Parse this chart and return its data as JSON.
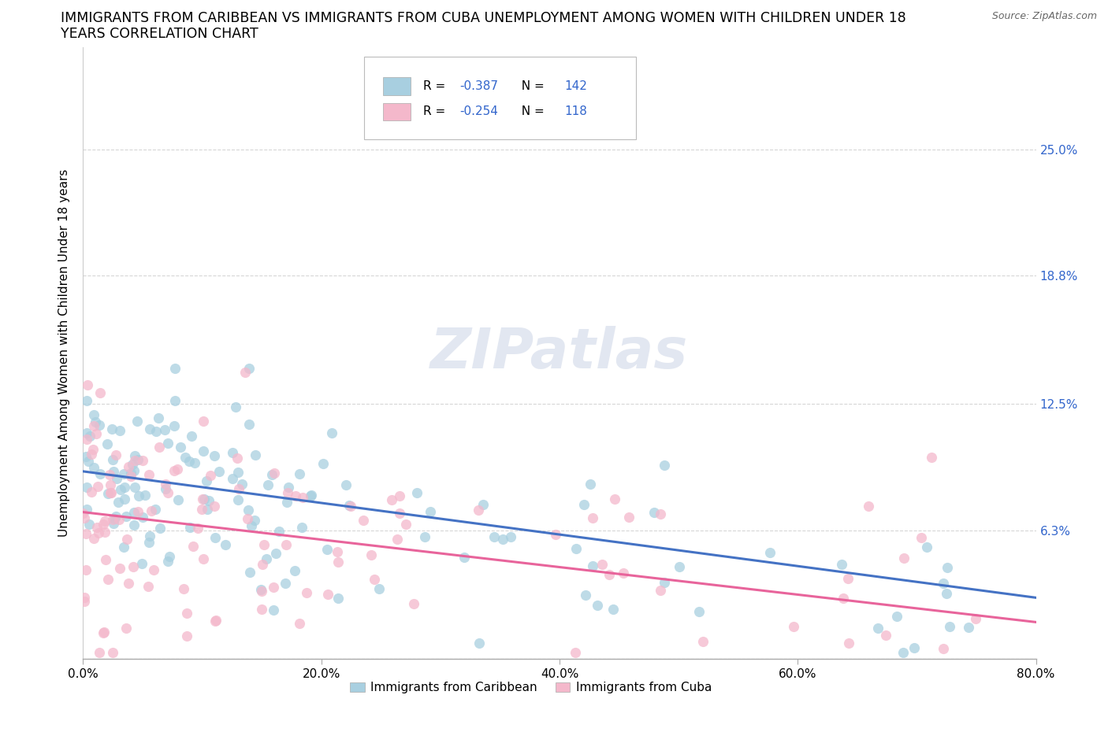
{
  "title_line1": "IMMIGRANTS FROM CARIBBEAN VS IMMIGRANTS FROM CUBA UNEMPLOYMENT AMONG WOMEN WITH CHILDREN UNDER 18",
  "title_line2": "YEARS CORRELATION CHART",
  "source_text": "Source: ZipAtlas.com",
  "ylabel": "Unemployment Among Women with Children Under 18 years",
  "xlim": [
    0.0,
    0.8
  ],
  "ylim": [
    0.0,
    0.3
  ],
  "yticks": [
    0.0,
    0.063,
    0.125,
    0.188,
    0.25
  ],
  "ytick_labels_right": [
    "",
    "6.3%",
    "12.5%",
    "18.8%",
    "25.0%"
  ],
  "xticks": [
    0.0,
    0.2,
    0.4,
    0.6,
    0.8
  ],
  "xtick_labels": [
    "0.0%",
    "20.0%",
    "40.0%",
    "60.0%",
    "80.0%"
  ],
  "caribbean_color": "#a8cfe0",
  "cuba_color": "#f4b8cb",
  "caribbean_line_color": "#4472c4",
  "cuba_line_color": "#e8649b",
  "watermark_text": "ZIPatlas",
  "legend_label1": "Immigrants from Caribbean",
  "legend_label2": "Immigrants from Cuba",
  "caribbean_R": "-0.387",
  "caribbean_N": "142",
  "cuba_R": "-0.254",
  "cuba_N": "118",
  "background_color": "#ffffff",
  "grid_color": "#cccccc",
  "title_fontsize": 12.5,
  "label_fontsize": 11,
  "tick_fontsize": 11,
  "right_tick_color": "#3366cc",
  "caribbean_line_start_y": 0.092,
  "caribbean_line_end_y": 0.03,
  "cuba_line_start_y": 0.072,
  "cuba_line_end_y": 0.018
}
